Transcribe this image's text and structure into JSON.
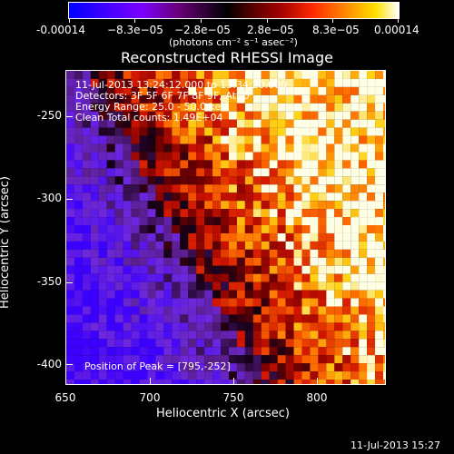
{
  "colorbar": {
    "tick_labels": [
      "-0.00014",
      "−8.3e−05",
      "−2.8e−05",
      "2.8e−05",
      "8.3e−05",
      "0.00014"
    ],
    "units": "(photons cm⁻² s⁻¹ asec⁻²)"
  },
  "image": {
    "title": "Reconstructed RHESSI Image",
    "time_range": "11-Jul-2013 13:24:12.000 to 13:34:20.000",
    "detectors": "Detectors: 3F 5F 6F 7F 8F 9F, Att 0",
    "energy_range": "Energy Range: 25.0 - 50.0 keV",
    "clean_counts": "Clean     Total counts: 1.49E+04",
    "peak_position": "Position of Peak = [795,-252]"
  },
  "axes": {
    "xlabel": "Heliocentric X (arcsec)",
    "ylabel": "Heliocentric Y (arcsec)",
    "xticks": [
      "650",
      "700",
      "750",
      "800"
    ],
    "yticks": [
      "-250",
      "-300",
      "-350",
      "-400"
    ]
  },
  "footer": {
    "timestamp": "11-Jul-2013 15:27"
  }
}
